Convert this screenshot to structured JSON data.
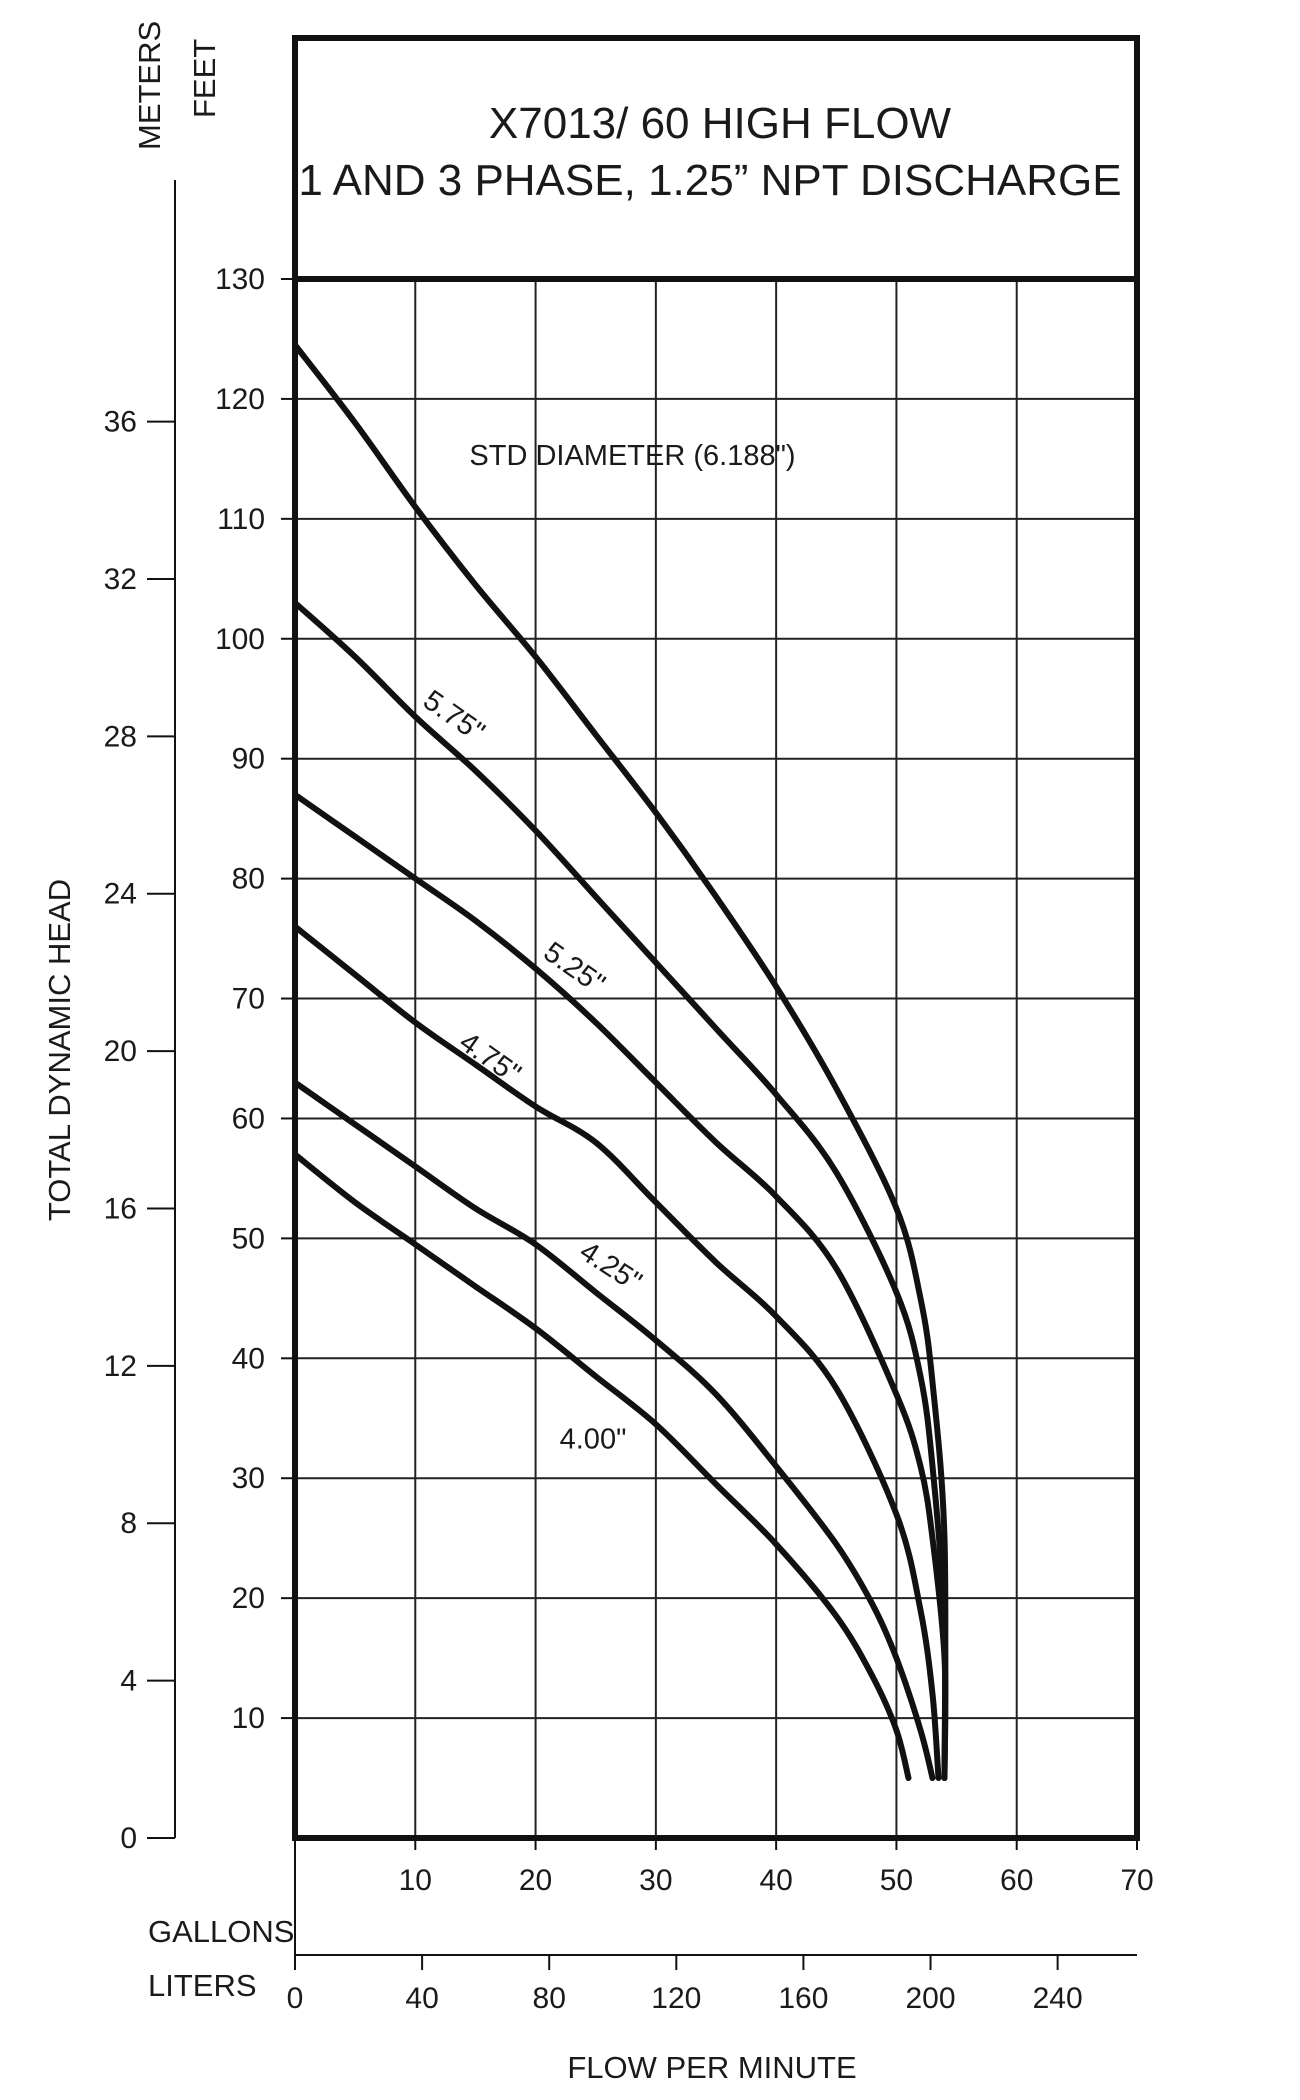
{
  "chart_data": {
    "type": "line",
    "title": "X7013/ 60 HIGH FLOW",
    "subtitle": "1 AND 3 PHASE, 1.25” NPT DISCHARGE",
    "xlabel": "FLOW PER MINUTE",
    "ylabel": "TOTAL DYNAMIC HEAD",
    "x_unit_primary": "GALLONS",
    "x_unit_secondary": "LITERS",
    "y_unit_primary": "FEET",
    "y_unit_secondary": "METERS",
    "xlim": [
      0,
      70
    ],
    "ylim": [
      0,
      130
    ],
    "grid": true,
    "x_ticks_gallons": [
      "10",
      "20",
      "30",
      "40",
      "50",
      "60",
      "70"
    ],
    "x_ticks_liters": [
      "0",
      "40",
      "80",
      "120",
      "160",
      "200",
      "240"
    ],
    "y_ticks_feet": [
      "10",
      "20",
      "30",
      "40",
      "50",
      "60",
      "70",
      "80",
      "90",
      "100",
      "110",
      "120",
      "130"
    ],
    "y_ticks_meters": [
      "0",
      "4",
      "8",
      "12",
      "16",
      "20",
      "24",
      "28",
      "32",
      "36"
    ],
    "series": [
      {
        "name": "STD DIAMETER (6.188\")",
        "x": [
          0,
          5,
          10,
          15,
          20,
          25,
          30,
          35,
          40,
          45,
          50,
          52,
          53,
          54,
          54
        ],
        "y": [
          124.5,
          118,
          111,
          104.5,
          98.5,
          92,
          85.5,
          78.5,
          71,
          62.5,
          52.5,
          45,
          38,
          25,
          5
        ]
      },
      {
        "name": "5.75\"",
        "x": [
          0,
          5,
          10,
          15,
          20,
          25,
          30,
          35,
          40,
          45,
          50,
          52,
          53,
          54,
          54
        ],
        "y": [
          103,
          98.5,
          93.5,
          89,
          84,
          78.5,
          73,
          67.5,
          62,
          55.5,
          45.5,
          38.5,
          31,
          18,
          5
        ]
      },
      {
        "name": "5.25\"",
        "x": [
          0,
          5,
          10,
          15,
          20,
          25,
          30,
          35,
          40,
          45,
          50,
          52,
          53,
          54,
          54
        ],
        "y": [
          87,
          83.5,
          80,
          76.5,
          72.5,
          68,
          63,
          58,
          53.5,
          47.5,
          37,
          31,
          25,
          15,
          5
        ]
      },
      {
        "name": "4.75\"",
        "x": [
          0,
          5,
          10,
          15,
          20,
          25,
          30,
          35,
          40,
          45,
          50,
          52,
          53,
          53.5
        ],
        "y": [
          76,
          72,
          68,
          64.5,
          61,
          58,
          53,
          48,
          43.5,
          37.5,
          27,
          19,
          12,
          5
        ]
      },
      {
        "name": "4.25\"",
        "x": [
          0,
          5,
          10,
          15,
          20,
          25,
          30,
          35,
          40,
          45,
          48,
          50,
          52,
          53
        ],
        "y": [
          63,
          59.5,
          56,
          52.5,
          49.5,
          45.5,
          41.5,
          37,
          31,
          24.5,
          19.5,
          15,
          9,
          5
        ]
      },
      {
        "name": "4.00\"",
        "x": [
          0,
          5,
          10,
          15,
          20,
          25,
          30,
          35,
          40,
          45,
          48,
          50,
          51
        ],
        "y": [
          57,
          53,
          49.5,
          46,
          42.5,
          38.5,
          34.5,
          29.5,
          24.5,
          18.5,
          13.5,
          9,
          5
        ]
      }
    ],
    "annotations": [
      "STD DIAMETER (6.188\")",
      "5.75\"",
      "5.25\"",
      "4.75\"",
      "4.25\"",
      "4.00\""
    ]
  }
}
